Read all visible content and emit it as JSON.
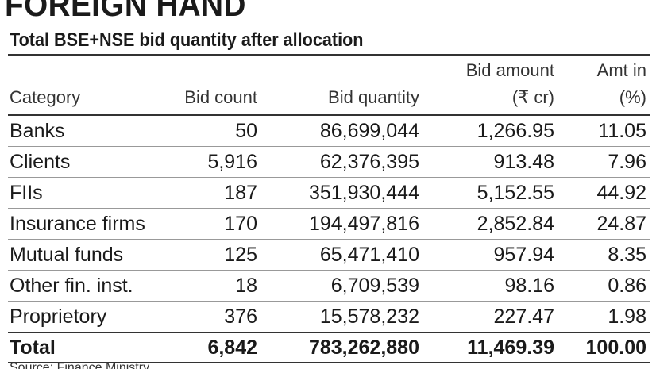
{
  "colors": {
    "text": "#1a1a1a",
    "rule": "#333333",
    "background": "#ffffff"
  },
  "chart_data": {
    "type": "table",
    "title": "FOREIGN HAND",
    "subtitle": "Total BSE+NSE bid quantity after allocation",
    "columns": [
      {
        "key": "category",
        "label_line1": "",
        "label_line2": "Category"
      },
      {
        "key": "bid_count",
        "label_line1": "",
        "label_line2": "Bid count"
      },
      {
        "key": "bid_quantity",
        "label_line1": "",
        "label_line2": "Bid quantity"
      },
      {
        "key": "bid_amount",
        "label_line1": "Bid amount",
        "label_line2": "(₹ cr)"
      },
      {
        "key": "amt_pct",
        "label_line1": "Amt in",
        "label_line2": "(%)"
      }
    ],
    "rows": [
      {
        "category": "Banks",
        "bid_count": "50",
        "bid_quantity": "86,699,044",
        "bid_amount": "1,266.95",
        "amt_pct": "11.05"
      },
      {
        "category": "Clients",
        "bid_count": "5,916",
        "bid_quantity": "62,376,395",
        "bid_amount": "913.48",
        "amt_pct": "7.96"
      },
      {
        "category": "FIIs",
        "bid_count": "187",
        "bid_quantity": "351,930,444",
        "bid_amount": "5,152.55",
        "amt_pct": "44.92"
      },
      {
        "category": "Insurance firms",
        "bid_count": "170",
        "bid_quantity": "194,497,816",
        "bid_amount": "2,852.84",
        "amt_pct": "24.87"
      },
      {
        "category": "Mutual funds",
        "bid_count": "125",
        "bid_quantity": "65,471,410",
        "bid_amount": "957.94",
        "amt_pct": "8.35"
      },
      {
        "category": "Other fin. inst.",
        "bid_count": "18",
        "bid_quantity": "6,709,539",
        "bid_amount": "98.16",
        "amt_pct": "0.86"
      },
      {
        "category": "Proprietory",
        "bid_count": "376",
        "bid_quantity": "15,578,232",
        "bid_amount": "227.47",
        "amt_pct": "1.98"
      }
    ],
    "total": {
      "category": "Total",
      "bid_count": "6,842",
      "bid_quantity": "783,262,880",
      "bid_amount": "11,469.39",
      "amt_pct": "100.00"
    },
    "source": "Source: Finance Ministry"
  }
}
